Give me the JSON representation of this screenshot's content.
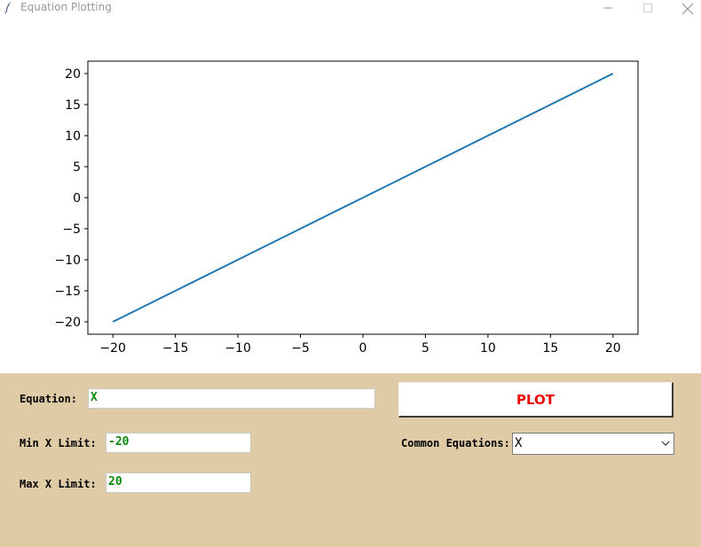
{
  "window": {
    "title": "Equation Plotting",
    "controls": [
      "minimize",
      "maximize",
      "close"
    ]
  },
  "chart_data": {
    "type": "line",
    "series": [
      {
        "x": [
          -20,
          -15,
          -10,
          -5,
          0,
          5,
          10,
          15,
          20
        ],
        "y": [
          -20,
          -15,
          -10,
          -5,
          0,
          5,
          10,
          15,
          20
        ],
        "color": "#1f77b4"
      }
    ],
    "xlim": [
      -22,
      22
    ],
    "ylim": [
      -22,
      22
    ],
    "xticks": [
      -20,
      -15,
      -10,
      -5,
      0,
      5,
      10,
      15,
      20
    ],
    "yticks": [
      -20,
      -15,
      -10,
      -5,
      0,
      5,
      10,
      15,
      20
    ],
    "xtick_labels": [
      "−20",
      "−15",
      "−10",
      "−5",
      "0",
      "5",
      "10",
      "15",
      "20"
    ],
    "ytick_labels": [
      "−20",
      "−15",
      "−10",
      "−5",
      "0",
      "5",
      "10",
      "15",
      "20"
    ],
    "grid": false,
    "title": "",
    "xlabel": "",
    "ylabel": ""
  },
  "form": {
    "equation_label": "Equation:",
    "equation_value": "X",
    "min_x_label": "Min X Limit:",
    "min_x_value": "-20",
    "max_x_label": "Max X Limit:",
    "max_x_value": "20",
    "plot_button": "PLOT",
    "common_equations_label": "Common Equations:",
    "common_equations_value": "X"
  },
  "colors": {
    "panel_bg": "#dfcca7",
    "input_text": "#0a8a0a",
    "plot_button_text": "#ee0000",
    "line": "#1f77b4"
  }
}
